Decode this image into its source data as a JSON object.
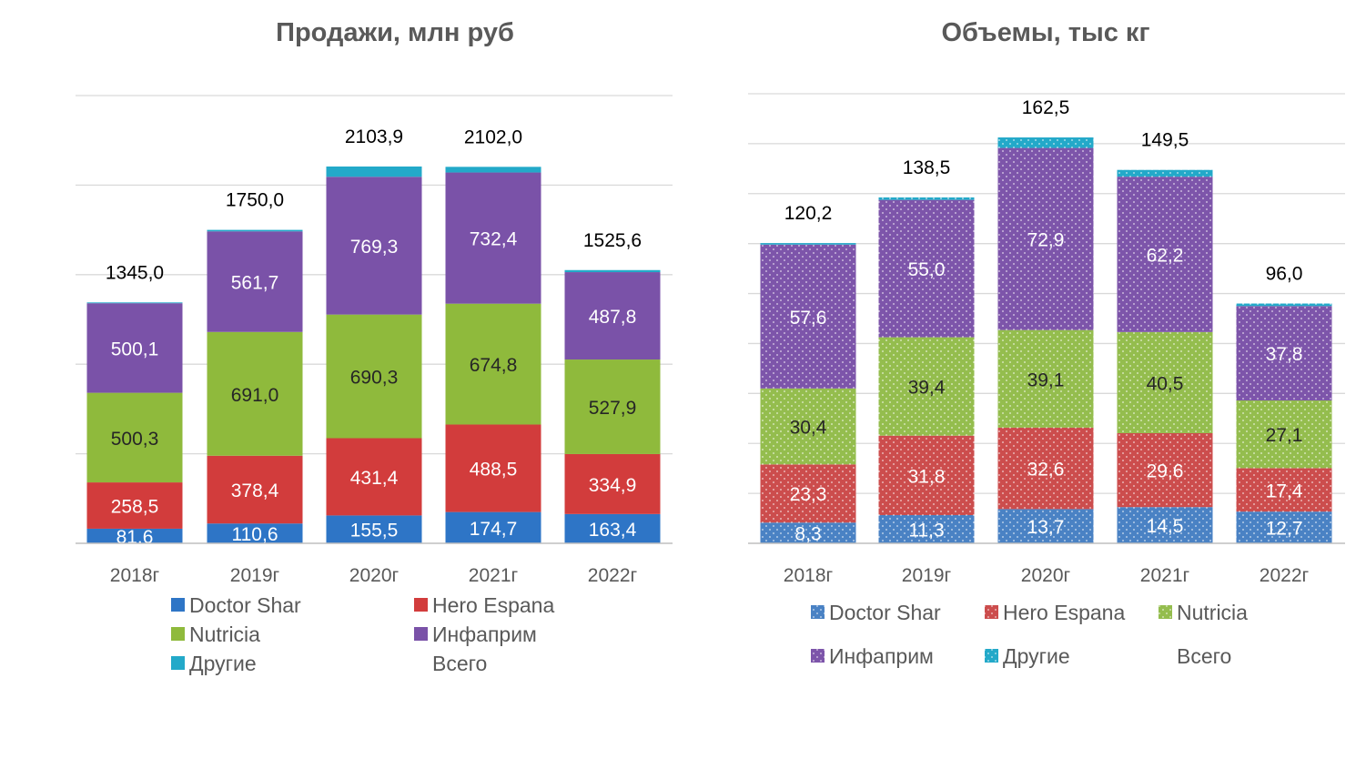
{
  "chart_data": [
    {
      "type": "bar",
      "stacked": true,
      "title": "Продажи, млн руб",
      "categories": [
        "2018г",
        "2019г",
        "2020г",
        "2021г",
        "2022г"
      ],
      "ylim": [
        0,
        2500
      ],
      "grid": true,
      "legend_position": "bottom",
      "pattern": "solid",
      "series": [
        {
          "name": "Doctor Shar",
          "color": "#2e75c6",
          "values": [
            81.6,
            110.6,
            155.5,
            174.7,
            163.4
          ],
          "labels": [
            "81,6",
            "110,6",
            "155,5",
            "174,7",
            "163,4"
          ]
        },
        {
          "name": "Hero Espana",
          "color": "#d23c3c",
          "values": [
            258.5,
            378.4,
            431.4,
            488.5,
            334.9
          ],
          "labels": [
            "258,5",
            "378,4",
            "431,4",
            "488,5",
            "334,9"
          ]
        },
        {
          "name": "Nutricia",
          "color": "#8fba3c",
          "values": [
            500.3,
            691.0,
            690.3,
            674.8,
            527.9
          ],
          "labels": [
            "500,3",
            "691,0",
            "690,3",
            "674,8",
            "527,9"
          ]
        },
        {
          "name": "Инфаприм",
          "color": "#7a52a8",
          "values": [
            500.1,
            561.7,
            769.3,
            732.4,
            487.8
          ],
          "labels": [
            "500,1",
            "561,7",
            "769,3",
            "732,4",
            "487,8"
          ]
        },
        {
          "name": "Другие",
          "color": "#23a9c9",
          "values": [
            4.5,
            8.3,
            57.4,
            31.6,
            11.6
          ],
          "labels": []
        }
      ],
      "total_name": "Всего",
      "totals": [
        1345.0,
        1750.0,
        2103.9,
        2102.0,
        1525.6
      ],
      "total_labels": [
        "1345,0",
        "1750,0",
        "2103,9",
        "2102,0",
        "1525,6"
      ]
    },
    {
      "type": "bar",
      "stacked": true,
      "title": "Объемы, тыс кг",
      "categories": [
        "2018г",
        "2019г",
        "2020г",
        "2021г",
        "2022г"
      ],
      "ylim": [
        0,
        180
      ],
      "grid": true,
      "legend_position": "bottom",
      "pattern": "dotted",
      "series": [
        {
          "name": "Doctor Shar",
          "color": "#4a82c4",
          "values": [
            8.3,
            11.3,
            13.7,
            14.5,
            12.7
          ],
          "labels": [
            "8,3",
            "11,3",
            "13,7",
            "14,5",
            "12,7"
          ]
        },
        {
          "name": "Hero Espana",
          "color": "#cc4d4d",
          "values": [
            23.3,
            31.8,
            32.6,
            29.6,
            17.4
          ],
          "labels": [
            "23,3",
            "31,8",
            "32,6",
            "29,6",
            "17,4"
          ]
        },
        {
          "name": "Nutricia",
          "color": "#94bd4e",
          "values": [
            30.4,
            39.4,
            39.1,
            40.5,
            27.1
          ],
          "labels": [
            "30,4",
            "39,4",
            "39,1",
            "40,5",
            "27,1"
          ]
        },
        {
          "name": "Инфаприм",
          "color": "#7d55aa",
          "values": [
            57.6,
            55.0,
            72.9,
            62.2,
            37.8
          ],
          "labels": [
            "57,6",
            "55,0",
            "72,9",
            "62,2",
            "37,8"
          ]
        },
        {
          "name": "Другие",
          "color": "#23a9c9",
          "values": [
            0.6,
            1.0,
            4.2,
            2.7,
            1.0
          ],
          "labels": []
        }
      ],
      "total_name": "Всего",
      "totals": [
        120.2,
        138.5,
        162.5,
        149.5,
        96.0
      ],
      "total_labels": [
        "120,2",
        "138,5",
        "162,5",
        "149,5",
        "96,0"
      ]
    }
  ]
}
